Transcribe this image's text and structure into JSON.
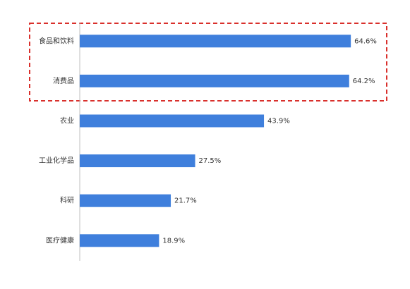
{
  "chart_data": {
    "type": "barh",
    "categories": [
      "食品和饮料",
      "消费品",
      "农业",
      "工业化学品",
      "科研",
      "医疗健康"
    ],
    "values": [
      64.6,
      64.2,
      43.9,
      27.5,
      21.7,
      18.9
    ],
    "value_labels": [
      "64.6%",
      "64.2%",
      "43.9%",
      "27.5%",
      "21.7%",
      "18.9%"
    ],
    "color": "#3f7fdc",
    "xlim": [
      0,
      75
    ]
  }
}
